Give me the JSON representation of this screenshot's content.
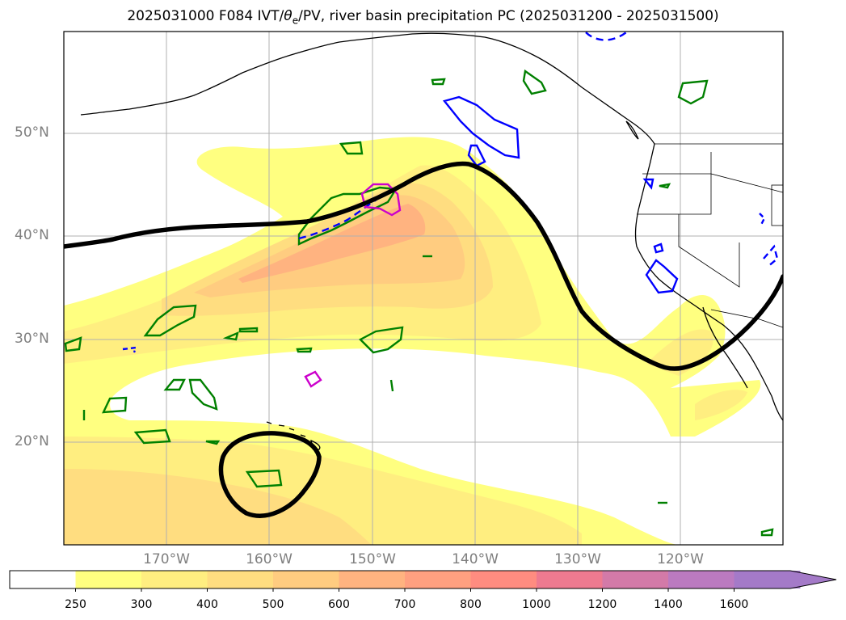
{
  "title": {
    "prefix": "2025031000 F084 IVT/",
    "theta": "θ",
    "theta_sub": "e",
    "suffix": "/PV, river basin precipitation PC (2025031200 - 2025031500)"
  },
  "axes": {
    "lat_labels": [
      "50°N",
      "40°N",
      "30°N",
      "20°N"
    ],
    "lon_labels": [
      "170°W",
      "160°W",
      "150°W",
      "140°W",
      "130°W",
      "120°W"
    ]
  },
  "colorbar": {
    "levels": [
      "250",
      "300",
      "400",
      "500",
      "600",
      "700",
      "800",
      "1000",
      "1200",
      "1400",
      "1600"
    ],
    "colors": [
      "#ffffff",
      "#ffff80",
      "#ffee80",
      "#ffdd80",
      "#ffcc80",
      "#ffb380",
      "#ffa080",
      "#ff8c80",
      "#ee7a90",
      "#d37aa8",
      "#bb7ac0",
      "#a47ac8"
    ],
    "extend": "max"
  },
  "colors": {
    "pv_contour": "#000000",
    "theta_e_contour": "#0000ff",
    "precip_contour": "#008000",
    "magenta_contour": "#cc00cc",
    "frame": "#000000",
    "grid": "#b0b0b0",
    "axis_label": "#7f7f7f"
  }
}
